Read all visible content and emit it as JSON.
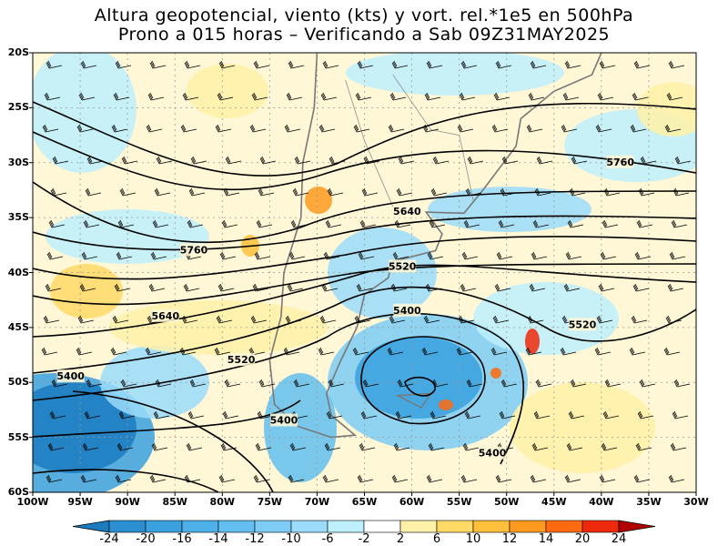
{
  "title_line1": "Altura geopotencial, viento (kts) y vort. rel.*1e5 en 500hPa",
  "title_line2": "Prono a 015 horas – Verificando a Sab 09Z31MAY2025",
  "lat_labels": [
    "20S",
    "25S",
    "30S",
    "35S",
    "40S",
    "45S",
    "50S",
    "55S",
    "60S"
  ],
  "lon_labels": [
    "100W",
    "95W",
    "90W",
    "85W",
    "80W",
    "75W",
    "70W",
    "65W",
    "60W",
    "55W",
    "50W",
    "45W",
    "40W",
    "35W",
    "30W"
  ],
  "contour_labels": [
    {
      "text": "5760",
      "lon": -38,
      "lat": -30
    },
    {
      "text": "5640",
      "lon": -60.5,
      "lat": -34.5
    },
    {
      "text": "5760",
      "lon": -83,
      "lat": -38
    },
    {
      "text": "5520",
      "lon": -61,
      "lat": -39.5
    },
    {
      "text": "5400",
      "lon": -60.5,
      "lat": -43.5
    },
    {
      "text": "5640",
      "lon": -86,
      "lat": -44
    },
    {
      "text": "5520",
      "lon": -42,
      "lat": -44.8
    },
    {
      "text": "5520",
      "lon": -78,
      "lat": -48
    },
    {
      "text": "5400",
      "lon": -96,
      "lat": -49.5
    },
    {
      "text": "5400",
      "lon": -73.5,
      "lat": -53.5
    },
    {
      "text": "5400",
      "lon": -51.5,
      "lat": -56.5
    }
  ],
  "colorbar": {
    "labels": [
      "-24",
      "-20",
      "-16",
      "-14",
      "-12",
      "-10",
      "-6",
      "-2",
      "2",
      "6",
      "10",
      "12",
      "14",
      "20",
      "24"
    ],
    "colors": [
      "#1a7bbf",
      "#2b8fd1",
      "#3aa0de",
      "#4eb0e8",
      "#62bff0",
      "#7dccf5",
      "#9bdcfa",
      "#bdeffd",
      "#ffffff",
      "#fff1a8",
      "#ffd966",
      "#ffbf3a",
      "#ff9a1f",
      "#ff6a10",
      "#ef2a0c",
      "#b30000"
    ]
  },
  "colors": {
    "low": "#3aa0de",
    "high": "#ffd966",
    "contour": "#000000",
    "coast": "#777777",
    "grid": "#999999"
  }
}
